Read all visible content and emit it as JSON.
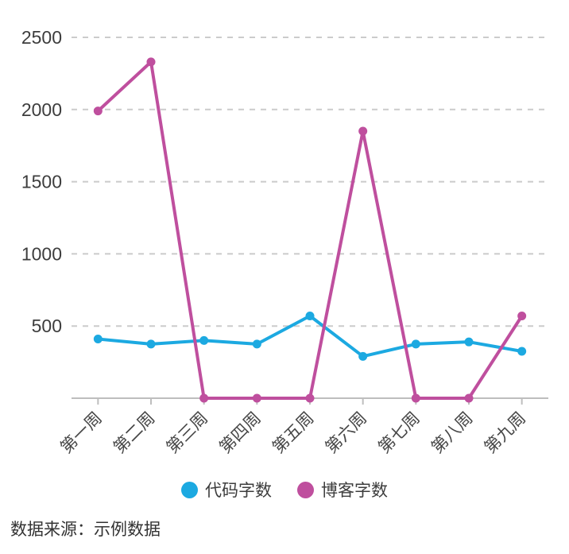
{
  "chart_data": {
    "type": "line",
    "title": "",
    "xlabel": "",
    "ylabel": "",
    "categories": [
      "第一周",
      "第二周",
      "第三周",
      "第四周",
      "第五周",
      "第六周",
      "第七周",
      "第八周",
      "第九周"
    ],
    "series": [
      {
        "name": "代码字数",
        "color": "#1CA9E1",
        "values": [
          410,
          375,
          400,
          375,
          570,
          290,
          375,
          390,
          325
        ]
      },
      {
        "name": "博客字数",
        "color": "#BF4F9E",
        "values": [
          1990,
          2330,
          0,
          0,
          0,
          1850,
          0,
          0,
          570
        ]
      }
    ],
    "ylim": [
      0,
      2500
    ],
    "yticks": [
      500,
      1000,
      1500,
      2000,
      2500
    ],
    "grid": "horizontal-dashed",
    "legend_position": "bottom",
    "x_label_rotation": -45
  },
  "legend": {
    "items": [
      {
        "label": "代码字数",
        "color": "#1CA9E1"
      },
      {
        "label": "博客字数",
        "color": "#BF4F9E"
      }
    ]
  },
  "footer": {
    "source_label": "数据来源：示例数据"
  },
  "colors": {
    "grid_line": "#CBCBCB",
    "axis_line": "#BEBEBE",
    "y_label": "#3D3D3D",
    "x_label": "#474747",
    "background": "#FFFFFF"
  }
}
